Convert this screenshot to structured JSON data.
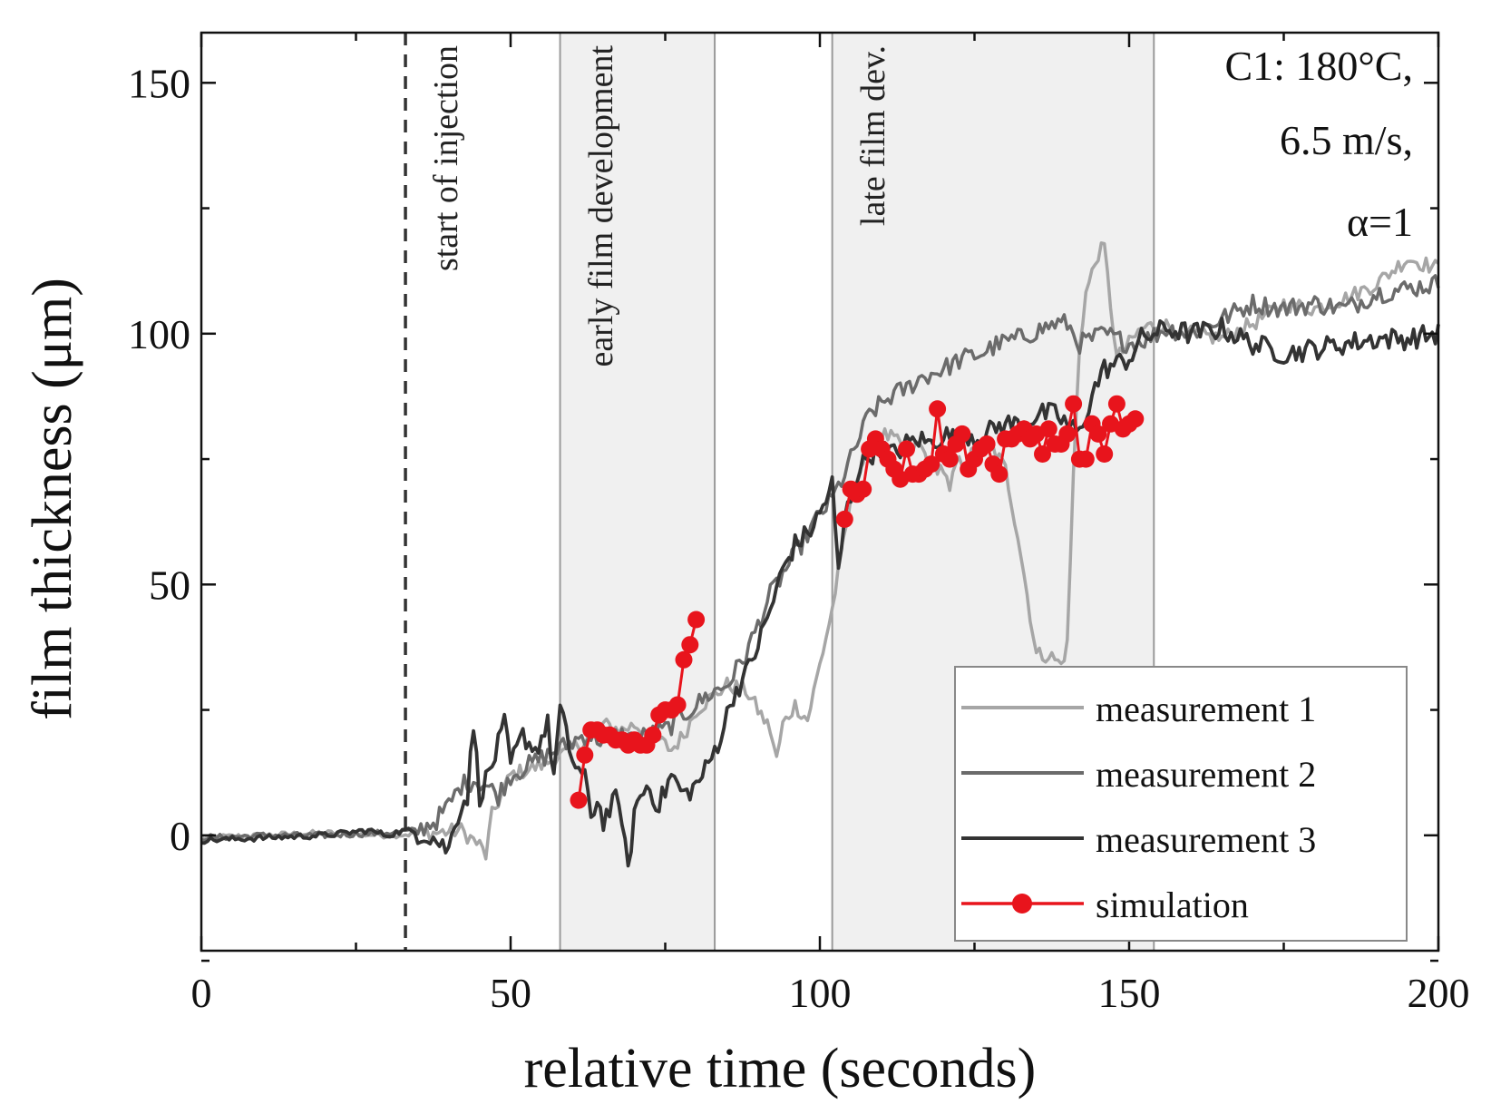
{
  "chart_data": {
    "type": "line",
    "xlabel": "relative time (seconds)",
    "ylabel": "film thickness (μm)",
    "xlim": [
      0,
      200
    ],
    "ylim": [
      -23,
      160
    ],
    "xticks": [
      0,
      50,
      100,
      150,
      200
    ],
    "yticks": [
      0,
      50,
      100,
      150
    ],
    "xtick_labels": [
      "0",
      "50",
      "100",
      "150",
      "200"
    ],
    "ytick_labels": [
      "0",
      "50",
      "100",
      "150"
    ],
    "annotation_lines": [
      "C1: 180°C,",
      "6.5 m/s,",
      "α=1"
    ],
    "vertical_marker": {
      "x": 33,
      "label": "start of injection",
      "style": "dashed"
    },
    "regions": [
      {
        "x0": 58,
        "x1": 83,
        "label": "early film development"
      },
      {
        "x0": 102,
        "x1": 154,
        "label": "late film dev."
      }
    ],
    "legend_position": "bottom-right",
    "series": [
      {
        "name": "measurement 1",
        "color": "#a6a6a6",
        "knots": [
          [
            0,
            -0.5
          ],
          [
            10,
            0
          ],
          [
            20,
            0.5
          ],
          [
            30,
            0
          ],
          [
            38,
            0.5
          ],
          [
            42,
            1
          ],
          [
            45,
            -2
          ],
          [
            46,
            -4
          ],
          [
            47,
            4
          ],
          [
            50,
            12
          ],
          [
            55,
            14
          ],
          [
            60,
            17
          ],
          [
            63,
            20
          ],
          [
            65,
            22
          ],
          [
            68,
            21
          ],
          [
            70,
            22
          ],
          [
            73,
            20
          ],
          [
            76,
            17
          ],
          [
            78,
            20
          ],
          [
            80,
            25
          ],
          [
            83,
            28
          ],
          [
            85,
            30
          ],
          [
            88,
            29
          ],
          [
            90,
            25
          ],
          [
            92,
            21
          ],
          [
            93,
            15
          ],
          [
            94,
            22
          ],
          [
            96,
            26
          ],
          [
            98,
            23
          ],
          [
            100,
            34
          ],
          [
            102,
            45
          ],
          [
            104,
            60
          ],
          [
            106,
            72
          ],
          [
            108,
            77
          ],
          [
            110,
            80
          ],
          [
            112,
            79
          ],
          [
            114,
            76
          ],
          [
            116,
            78
          ],
          [
            118,
            74
          ],
          [
            120,
            73
          ],
          [
            121,
            68
          ],
          [
            122,
            74
          ],
          [
            124,
            75
          ],
          [
            126,
            78
          ],
          [
            128,
            77
          ],
          [
            130,
            73
          ],
          [
            132,
            60
          ],
          [
            134,
            44
          ],
          [
            135,
            36
          ],
          [
            137,
            36
          ],
          [
            139,
            34
          ],
          [
            140,
            38
          ],
          [
            141,
            72
          ],
          [
            142,
            98
          ],
          [
            143,
            108
          ],
          [
            144,
            112
          ],
          [
            145,
            116
          ],
          [
            146,
            117
          ],
          [
            147,
            106
          ],
          [
            148,
            95
          ],
          [
            150,
            98
          ],
          [
            152,
            101
          ],
          [
            155,
            102
          ],
          [
            160,
            100
          ],
          [
            165,
            99
          ],
          [
            170,
            102
          ],
          [
            175,
            106
          ],
          [
            180,
            105
          ],
          [
            185,
            107
          ],
          [
            190,
            110
          ],
          [
            195,
            115
          ],
          [
            200,
            113
          ]
        ]
      },
      {
        "name": "measurement 2",
        "color": "#6b6b6b",
        "knots": [
          [
            0,
            -0.5
          ],
          [
            10,
            0
          ],
          [
            20,
            0
          ],
          [
            30,
            0.5
          ],
          [
            35,
            1
          ],
          [
            38,
            3
          ],
          [
            40,
            6
          ],
          [
            42,
            10
          ],
          [
            44,
            11
          ],
          [
            46,
            10
          ],
          [
            48,
            8
          ],
          [
            50,
            12
          ],
          [
            53,
            14
          ],
          [
            56,
            16
          ],
          [
            59,
            18
          ],
          [
            62,
            20
          ],
          [
            65,
            19
          ],
          [
            68,
            20
          ],
          [
            70,
            19
          ],
          [
            72,
            20
          ],
          [
            75,
            21
          ],
          [
            78,
            24
          ],
          [
            80,
            26
          ],
          [
            82,
            28
          ],
          [
            85,
            30
          ],
          [
            88,
            36
          ],
          [
            90,
            42
          ],
          [
            92,
            48
          ],
          [
            94,
            52
          ],
          [
            96,
            56
          ],
          [
            98,
            60
          ],
          [
            100,
            64
          ],
          [
            102,
            67
          ],
          [
            104,
            72
          ],
          [
            106,
            78
          ],
          [
            108,
            84
          ],
          [
            110,
            86
          ],
          [
            112,
            88
          ],
          [
            114,
            89
          ],
          [
            116,
            91
          ],
          [
            118,
            92
          ],
          [
            120,
            93
          ],
          [
            123,
            95
          ],
          [
            126,
            96
          ],
          [
            129,
            98
          ],
          [
            132,
            99
          ],
          [
            134,
            100
          ],
          [
            136,
            101
          ],
          [
            138,
            102
          ],
          [
            140,
            102
          ],
          [
            142,
            98
          ],
          [
            144,
            99
          ],
          [
            146,
            100
          ],
          [
            148,
            99
          ],
          [
            150,
            98
          ],
          [
            153,
            99
          ],
          [
            156,
            101
          ],
          [
            160,
            100
          ],
          [
            165,
            103
          ],
          [
            170,
            106
          ],
          [
            175,
            105
          ],
          [
            180,
            106
          ],
          [
            185,
            105
          ],
          [
            190,
            108
          ],
          [
            195,
            109
          ],
          [
            200,
            110
          ]
        ]
      },
      {
        "name": "measurement 3",
        "color": "#333333",
        "knots": [
          [
            0,
            -1
          ],
          [
            10,
            -0.5
          ],
          [
            20,
            0
          ],
          [
            27,
            1
          ],
          [
            30,
            0
          ],
          [
            33,
            1
          ],
          [
            37,
            0
          ],
          [
            39,
            -2
          ],
          [
            40,
            -3
          ],
          [
            41,
            3
          ],
          [
            43,
            8
          ],
          [
            44,
            22
          ],
          [
            45,
            8
          ],
          [
            47,
            14
          ],
          [
            49,
            22
          ],
          [
            50,
            14
          ],
          [
            52,
            20
          ],
          [
            54,
            17
          ],
          [
            56,
            22
          ],
          [
            57,
            12
          ],
          [
            58,
            25
          ],
          [
            60,
            15
          ],
          [
            62,
            11
          ],
          [
            63,
            4
          ],
          [
            64,
            7
          ],
          [
            65,
            3
          ],
          [
            67,
            7
          ],
          [
            68,
            4
          ],
          [
            69,
            -8
          ],
          [
            70,
            5
          ],
          [
            72,
            10
          ],
          [
            74,
            6
          ],
          [
            76,
            12
          ],
          [
            78,
            8
          ],
          [
            80,
            10
          ],
          [
            82,
            14
          ],
          [
            84,
            20
          ],
          [
            86,
            28
          ],
          [
            88,
            32
          ],
          [
            90,
            38
          ],
          [
            92,
            45
          ],
          [
            94,
            53
          ],
          [
            96,
            58
          ],
          [
            98,
            60
          ],
          [
            100,
            64
          ],
          [
            102,
            70
          ],
          [
            103,
            52
          ],
          [
            104,
            63
          ],
          [
            106,
            72
          ],
          [
            108,
            76
          ],
          [
            110,
            77
          ],
          [
            112,
            76
          ],
          [
            114,
            78
          ],
          [
            116,
            79
          ],
          [
            118,
            78
          ],
          [
            120,
            80
          ],
          [
            122,
            79
          ],
          [
            124,
            80
          ],
          [
            126,
            79
          ],
          [
            128,
            81
          ],
          [
            130,
            82
          ],
          [
            132,
            82
          ],
          [
            134,
            83
          ],
          [
            136,
            84
          ],
          [
            138,
            84
          ],
          [
            140,
            82
          ],
          [
            142,
            80
          ],
          [
            144,
            88
          ],
          [
            146,
            93
          ],
          [
            148,
            94
          ],
          [
            150,
            95
          ],
          [
            152,
            99
          ],
          [
            154,
            100
          ],
          [
            156,
            101
          ],
          [
            160,
            100
          ],
          [
            165,
            101
          ],
          [
            170,
            98
          ],
          [
            175,
            96
          ],
          [
            180,
            97
          ],
          [
            185,
            98
          ],
          [
            190,
            99
          ],
          [
            195,
            99
          ],
          [
            200,
            100
          ]
        ]
      },
      {
        "name": "simulation",
        "color": "#e8141c",
        "x": [
          61,
          62,
          63,
          64,
          65,
          66,
          67,
          68,
          69,
          70,
          71,
          72,
          73,
          74,
          75,
          76,
          77,
          78,
          79,
          80,
          104,
          105,
          106,
          107,
          108,
          109,
          110,
          111,
          112,
          113,
          114,
          115,
          116,
          117,
          118,
          119,
          120,
          121,
          122,
          123,
          124,
          125,
          126,
          127,
          128,
          129,
          130,
          131,
          132,
          133,
          134,
          135,
          136,
          137,
          138,
          139,
          140,
          141,
          142,
          143,
          144,
          145,
          146,
          147,
          148,
          149,
          150,
          151
        ],
        "values": [
          7,
          16,
          21,
          21,
          20,
          20,
          19,
          19,
          18,
          19,
          18,
          18,
          20,
          24,
          25,
          25,
          26,
          35,
          38,
          43,
          63,
          69,
          68,
          69,
          77,
          79,
          77,
          75,
          73,
          71,
          77,
          72,
          72,
          73,
          74,
          85,
          76,
          75,
          78,
          80,
          73,
          75,
          77,
          78,
          74,
          72,
          79,
          79,
          80,
          81,
          79,
          80,
          76,
          81,
          78,
          78,
          80,
          86,
          75,
          75,
          82,
          80,
          76,
          82,
          86,
          81,
          82,
          83
        ]
      }
    ]
  }
}
